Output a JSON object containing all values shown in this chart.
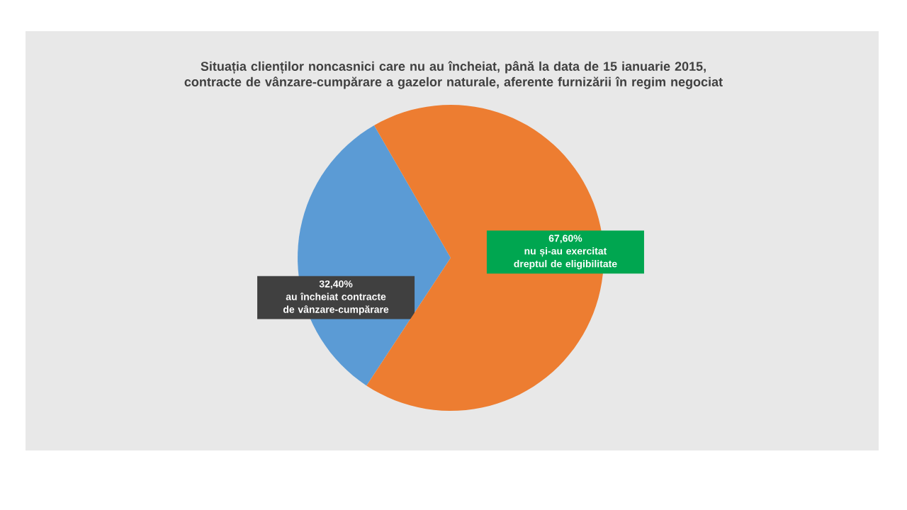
{
  "chart_data": {
    "type": "pie",
    "title": "Situația clienților noncasnici care nu au încheiat, până la data de 15 ianuarie 2015, contracte de vânzare-cumpărare a gazelor naturale, aferente furnizării în regim negociat",
    "categories": [
      "au încheiat contracte de vânzare-cumpărare",
      "nu și-au exercitat dreptul de eligibilitate"
    ],
    "values": [
      32.4,
      67.6
    ],
    "value_labels": [
      "32,40%",
      "67,60%"
    ],
    "colors": [
      "#5b9bd5",
      "#ed7d31"
    ]
  }
}
